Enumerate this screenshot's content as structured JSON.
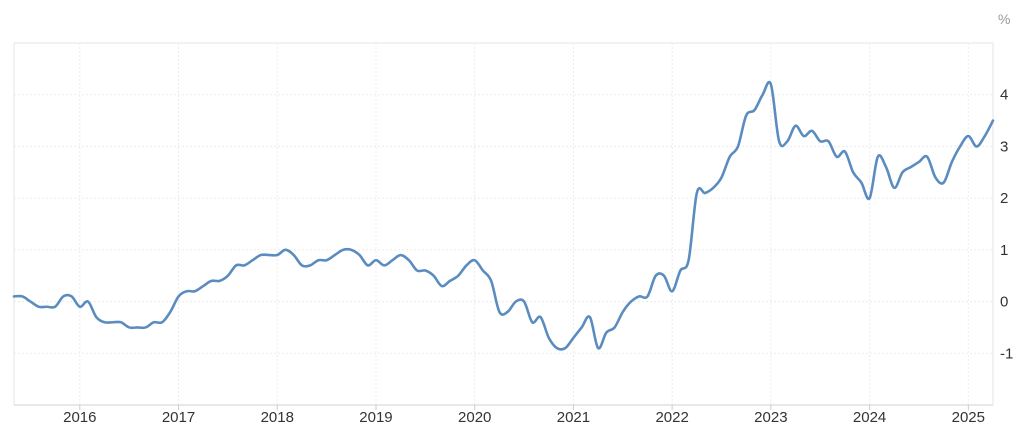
{
  "chart_data": {
    "type": "line",
    "title": "",
    "xlabel": "",
    "ylabel": "",
    "unit_label": "%",
    "x_tick_labels": [
      "2016",
      "2017",
      "2018",
      "2019",
      "2020",
      "2021",
      "2022",
      "2023",
      "2024",
      "2025"
    ],
    "y_tick_labels": [
      "4",
      "3",
      "2",
      "1",
      "0",
      "-1"
    ],
    "y_ticks": [
      4,
      3,
      2,
      1,
      0,
      -1
    ],
    "xlim": [
      "2015-05",
      "2025-04"
    ],
    "ylim": [
      -2,
      5
    ],
    "grid": true,
    "legend": "none",
    "line_color": "#5b8cc0",
    "series": [
      {
        "values": [
          [
            "2015-05",
            0.1
          ],
          [
            "2015-06",
            0.1
          ],
          [
            "2015-07",
            0.0
          ],
          [
            "2015-08",
            -0.1
          ],
          [
            "2015-09",
            -0.1
          ],
          [
            "2015-10",
            -0.1
          ],
          [
            "2015-11",
            0.1
          ],
          [
            "2015-12",
            0.1
          ],
          [
            "2016-01",
            -0.1
          ],
          [
            "2016-02",
            0.0
          ],
          [
            "2016-03",
            -0.3
          ],
          [
            "2016-04",
            -0.4
          ],
          [
            "2016-05",
            -0.4
          ],
          [
            "2016-06",
            -0.4
          ],
          [
            "2016-07",
            -0.5
          ],
          [
            "2016-08",
            -0.5
          ],
          [
            "2016-09",
            -0.5
          ],
          [
            "2016-10",
            -0.4
          ],
          [
            "2016-11",
            -0.4
          ],
          [
            "2016-12",
            -0.2
          ],
          [
            "2017-01",
            0.1
          ],
          [
            "2017-02",
            0.2
          ],
          [
            "2017-03",
            0.2
          ],
          [
            "2017-04",
            0.3
          ],
          [
            "2017-05",
            0.4
          ],
          [
            "2017-06",
            0.4
          ],
          [
            "2017-07",
            0.5
          ],
          [
            "2017-08",
            0.7
          ],
          [
            "2017-09",
            0.7
          ],
          [
            "2017-10",
            0.8
          ],
          [
            "2017-11",
            0.9
          ],
          [
            "2017-12",
            0.9
          ],
          [
            "2018-01",
            0.9
          ],
          [
            "2018-02",
            1.0
          ],
          [
            "2018-03",
            0.9
          ],
          [
            "2018-04",
            0.7
          ],
          [
            "2018-05",
            0.7
          ],
          [
            "2018-06",
            0.8
          ],
          [
            "2018-07",
            0.8
          ],
          [
            "2018-08",
            0.9
          ],
          [
            "2018-09",
            1.0
          ],
          [
            "2018-10",
            1.0
          ],
          [
            "2018-11",
            0.9
          ],
          [
            "2018-12",
            0.7
          ],
          [
            "2019-01",
            0.8
          ],
          [
            "2019-02",
            0.7
          ],
          [
            "2019-03",
            0.8
          ],
          [
            "2019-04",
            0.9
          ],
          [
            "2019-05",
            0.8
          ],
          [
            "2019-06",
            0.6
          ],
          [
            "2019-07",
            0.6
          ],
          [
            "2019-08",
            0.5
          ],
          [
            "2019-09",
            0.3
          ],
          [
            "2019-10",
            0.4
          ],
          [
            "2019-11",
            0.5
          ],
          [
            "2019-12",
            0.7
          ],
          [
            "2020-01",
            0.8
          ],
          [
            "2020-02",
            0.6
          ],
          [
            "2020-03",
            0.4
          ],
          [
            "2020-04",
            -0.2
          ],
          [
            "2020-05",
            -0.2
          ],
          [
            "2020-06",
            0.0
          ],
          [
            "2020-07",
            0.0
          ],
          [
            "2020-08",
            -0.4
          ],
          [
            "2020-09",
            -0.3
          ],
          [
            "2020-10",
            -0.7
          ],
          [
            "2020-11",
            -0.9
          ],
          [
            "2020-12",
            -0.9
          ],
          [
            "2021-01",
            -0.7
          ],
          [
            "2021-02",
            -0.5
          ],
          [
            "2021-03",
            -0.3
          ],
          [
            "2021-04",
            -0.9
          ],
          [
            "2021-05",
            -0.6
          ],
          [
            "2021-06",
            -0.5
          ],
          [
            "2021-07",
            -0.2
          ],
          [
            "2021-08",
            0.0
          ],
          [
            "2021-09",
            0.1
          ],
          [
            "2021-10",
            0.1
          ],
          [
            "2021-11",
            0.5
          ],
          [
            "2021-12",
            0.5
          ],
          [
            "2022-01",
            0.2
          ],
          [
            "2022-02",
            0.6
          ],
          [
            "2022-03",
            0.8
          ],
          [
            "2022-04",
            2.1
          ],
          [
            "2022-05",
            2.1
          ],
          [
            "2022-06",
            2.2
          ],
          [
            "2022-07",
            2.4
          ],
          [
            "2022-08",
            2.8
          ],
          [
            "2022-09",
            3.0
          ],
          [
            "2022-10",
            3.6
          ],
          [
            "2022-11",
            3.7
          ],
          [
            "2022-12",
            4.0
          ],
          [
            "2023-01",
            4.2
          ],
          [
            "2023-02",
            3.1
          ],
          [
            "2023-03",
            3.1
          ],
          [
            "2023-04",
            3.4
          ],
          [
            "2023-05",
            3.2
          ],
          [
            "2023-06",
            3.3
          ],
          [
            "2023-07",
            3.1
          ],
          [
            "2023-08",
            3.1
          ],
          [
            "2023-09",
            2.8
          ],
          [
            "2023-10",
            2.9
          ],
          [
            "2023-11",
            2.5
          ],
          [
            "2023-12",
            2.3
          ],
          [
            "2024-01",
            2.0
          ],
          [
            "2024-02",
            2.8
          ],
          [
            "2024-03",
            2.6
          ],
          [
            "2024-04",
            2.2
          ],
          [
            "2024-05",
            2.5
          ],
          [
            "2024-06",
            2.6
          ],
          [
            "2024-07",
            2.7
          ],
          [
            "2024-08",
            2.8
          ],
          [
            "2024-09",
            2.4
          ],
          [
            "2024-10",
            2.3
          ],
          [
            "2024-11",
            2.7
          ],
          [
            "2024-12",
            3.0
          ],
          [
            "2025-01",
            3.2
          ],
          [
            "2025-02",
            3.0
          ],
          [
            "2025-03",
            3.2
          ],
          [
            "2025-04",
            3.5
          ]
        ]
      }
    ]
  }
}
